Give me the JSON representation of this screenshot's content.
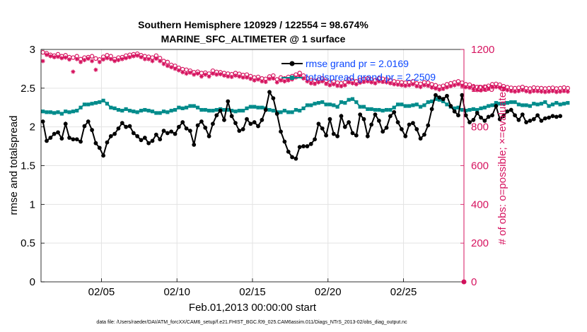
{
  "chart_data": {
    "type": "line",
    "title_line1": "Southern Hemisphere 120929 / 122554 = 98.674%",
    "title_line2": "MARINE_SFC_ALTIMETER @ 1 surface",
    "xlabel": "Feb.01,2013 00:00:00 start",
    "ylabel_left": "rmse and totalspread",
    "ylabel_right": "# of obs: o=possible; ×=evaluated",
    "footnote": "data file: /Users/raeder/DAI/ATM_forcXX/CAM6_setup/f.e21.FHIST_BGC.f09_025.CAM6assim.011/Diags_NTrS_2013-02/obs_diag_output.nc",
    "xlim": [
      1.0,
      29.0
    ],
    "ylim_left": [
      0,
      3
    ],
    "ylim_right": [
      0,
      1200
    ],
    "x_ticks": [
      5,
      10,
      15,
      20,
      25
    ],
    "x_tick_labels": [
      "02/05",
      "02/10",
      "02/15",
      "02/20",
      "02/25"
    ],
    "y_left_ticks": [
      0,
      0.5,
      1,
      1.5,
      2,
      2.5,
      3
    ],
    "y_left_tick_labels": [
      "0",
      "0.5",
      "1",
      "1.5",
      "2",
      "2.5",
      "3"
    ],
    "y_right_ticks": [
      0,
      200,
      400,
      600,
      800,
      1000,
      1200
    ],
    "y_right_tick_labels": [
      "0",
      "200",
      "400",
      "600",
      "800",
      "1000",
      "1200"
    ],
    "grid": true,
    "legend_position": "top-right",
    "colors": {
      "rmse": "#000000",
      "spread": "#008b8b",
      "obs": "#d6135f",
      "axis": "#000000",
      "grid": "#e3e3e3"
    },
    "x_start": 1.125,
    "x_step": 0.25,
    "series": [
      {
        "name": "rmse grand pr = 2.0169",
        "axis": "left",
        "values": [
          2.07,
          1.82,
          1.86,
          1.91,
          1.93,
          1.85,
          2.04,
          1.86,
          1.84,
          1.84,
          1.81,
          2.01,
          2.07,
          1.96,
          1.79,
          1.73,
          1.63,
          1.8,
          1.88,
          1.91,
          1.98,
          2.05,
          2.0,
          2.01,
          1.92,
          1.88,
          1.83,
          1.86,
          1.79,
          1.82,
          1.9,
          1.84,
          1.95,
          1.92,
          1.94,
          1.91,
          2.0,
          2.06,
          1.98,
          1.95,
          1.77,
          2.02,
          2.07,
          1.99,
          1.88,
          2.04,
          2.15,
          2.21,
          2.09,
          2.33,
          2.14,
          2.05,
          1.95,
          1.97,
          2.1,
          2.04,
          2.06,
          2.01,
          2.09,
          2.22,
          2.45,
          2.37,
          2.17,
          1.94,
          1.81,
          1.68,
          1.61,
          1.59,
          1.74,
          1.75,
          1.75,
          1.78,
          1.84,
          2.04,
          1.98,
          1.89,
          2.1,
          1.91,
          1.88,
          2.14,
          2.0,
          2.06,
          1.92,
          1.89,
          2.16,
          2.1,
          1.88,
          2.03,
          2.16,
          2.08,
          1.94,
          1.99,
          2.14,
          2.19,
          2.06,
          1.97,
          1.88,
          2.03,
          2.05,
          1.97,
          1.85,
          1.9,
          2.02,
          2.23,
          2.41,
          2.38,
          2.36,
          2.4,
          2.27,
          2.2,
          2.15,
          2.41,
          2.15,
          2.06,
          2.09,
          2.18,
          2.12,
          2.08,
          2.13,
          2.15,
          2.27,
          2.1,
          2.14,
          2.2,
          2.22,
          2.15,
          2.09,
          2.16,
          2.06,
          2.08,
          2.1,
          2.15,
          2.08,
          2.11,
          2.12,
          2.14,
          2.13,
          2.14
        ]
      },
      {
        "name": "totalspread grand pr = 2.2509",
        "axis": "left",
        "values": [
          2.2,
          2.19,
          2.19,
          2.18,
          2.19,
          2.17,
          2.2,
          2.19,
          2.2,
          2.21,
          2.25,
          2.29,
          2.29,
          2.3,
          2.31,
          2.32,
          2.34,
          2.3,
          2.25,
          2.24,
          2.22,
          2.21,
          2.23,
          2.21,
          2.2,
          2.19,
          2.21,
          2.22,
          2.21,
          2.2,
          2.18,
          2.18,
          2.2,
          2.19,
          2.21,
          2.22,
          2.25,
          2.24,
          2.25,
          2.27,
          2.27,
          2.25,
          2.22,
          2.22,
          2.21,
          2.21,
          2.22,
          2.23,
          2.22,
          2.22,
          2.21,
          2.2,
          2.21,
          2.21,
          2.24,
          2.26,
          2.26,
          2.25,
          2.25,
          2.24,
          2.22,
          2.21,
          2.19,
          2.19,
          2.21,
          2.19,
          2.19,
          2.22,
          2.21,
          2.24,
          2.28,
          2.28,
          2.3,
          2.31,
          2.32,
          2.29,
          2.29,
          2.28,
          2.26,
          2.32,
          2.31,
          2.35,
          2.36,
          2.32,
          2.26,
          2.26,
          2.23,
          2.23,
          2.22,
          2.22,
          2.21,
          2.22,
          2.22,
          2.25,
          2.29,
          2.29,
          2.27,
          2.27,
          2.28,
          2.29,
          2.26,
          2.28,
          2.32,
          2.33,
          2.36,
          2.35,
          2.33,
          2.29,
          2.26,
          2.24,
          2.25,
          2.22,
          2.21,
          2.22,
          2.23,
          2.22,
          2.24,
          2.25,
          2.27,
          2.28,
          2.31,
          2.3,
          2.3,
          2.31,
          2.32,
          2.32,
          2.29,
          2.28,
          2.28,
          2.27,
          2.3,
          2.29,
          2.3,
          2.32,
          2.27,
          2.29,
          2.31,
          2.29,
          2.3,
          2.31
        ]
      },
      {
        "name": "obs possible",
        "axis": "right",
        "values": [
          1185,
          1180,
          1172,
          1168,
          1175,
          1165,
          1170,
          1160,
          1158,
          1165,
          1150,
          1158,
          1160,
          1165,
          1153,
          1148,
          1162,
          1170,
          1165,
          1150,
          1158,
          1160,
          1168,
          1172,
          1175,
          1178,
          1170,
          1165,
          1162,
          1158,
          1168,
          1155,
          1140,
          1135,
          1120,
          1115,
          1105,
          1098,
          1095,
          1090,
          1082,
          1085,
          1078,
          1080,
          1075,
          1090,
          1084,
          1082,
          1078,
          1075,
          1072,
          1078,
          1074,
          1068,
          1070,
          1062,
          1055,
          1058,
          1050,
          1048,
          1060,
          1065,
          1045,
          1055,
          1050,
          1058,
          1062,
          1070,
          1078,
          1065,
          1050,
          1042,
          1038,
          1045,
          1050,
          1038,
          1030,
          1035,
          1028,
          1025,
          1030,
          1045,
          1040,
          1035,
          1042,
          1048,
          1050,
          1045,
          1040,
          1050,
          1048,
          1045,
          1040,
          1035,
          1032,
          1030,
          1028,
          1030,
          1035,
          1025,
          1022,
          1030,
          1028,
          1020,
          1015,
          1008,
          1012,
          1020,
          1025,
          1030,
          1035,
          1028,
          1020,
          1018,
          1010,
          1006,
          1005,
          1008,
          1012,
          1020,
          1022,
          1018,
          1010,
          1005,
          1002,
          1000,
          1002,
          1006,
          1000,
          998,
          1003,
          1001,
          1000,
          998,
          1000,
          1002,
          998,
          1000,
          1003,
          1000
        ]
      },
      {
        "name": "obs evaluated",
        "axis": "right",
        "values": [
          1140,
          1172,
          1165,
          1160,
          1162,
          1155,
          1158,
          1148,
          1085,
          1150,
          1135,
          1145,
          1152,
          1140,
          1095,
          1135,
          1148,
          1155,
          1150,
          1140,
          1145,
          1150,
          1155,
          1160,
          1165,
          1168,
          1160,
          1150,
          1150,
          1140,
          1152,
          1140,
          1125,
          1115,
          1108,
          1100,
          1092,
          1082,
          1075,
          1080,
          1070,
          1075,
          1060,
          1070,
          1060,
          1075,
          1070,
          1072,
          1065,
          1060,
          1058,
          1065,
          1060,
          1055,
          1055,
          1048,
          1040,
          1045,
          1035,
          1032,
          1048,
          1050,
          1030,
          1040,
          1035,
          1040,
          1045,
          1055,
          1062,
          1050,
          1035,
          1025,
          1022,
          1030,
          1035,
          1022,
          1015,
          1020,
          1012,
          1010,
          1015,
          1030,
          1025,
          1020,
          1028,
          1032,
          1035,
          1030,
          1025,
          1035,
          1032,
          1030,
          1025,
          1020,
          1018,
          1015,
          1012,
          1015,
          1020,
          1010,
          1006,
          1015,
          1012,
          1003,
          998,
          992,
          996,
          1004,
          1010,
          1015,
          1020,
          1012,
          1005,
          1002,
          995,
          990,
          988,
          992,
          996,
          1005,
          1006,
          1002,
          995,
          990,
          985,
          982,
          985,
          990,
          984,
          980,
          985,
          984,
          982,
          980,
          982,
          985,
          980,
          982,
          985,
          982
        ]
      }
    ]
  }
}
